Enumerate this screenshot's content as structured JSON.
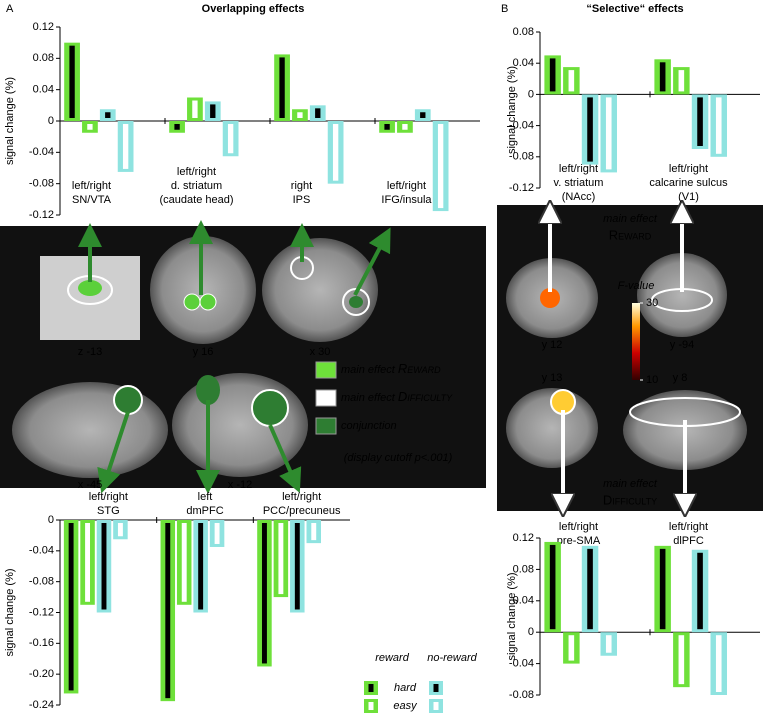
{
  "panels": [
    {
      "label": "A",
      "title": "Overlapping effects"
    },
    {
      "label": "B",
      "title": "“Selective“ effects"
    }
  ],
  "chart_data": [
    {
      "type": "bar",
      "ylabel": "signal change (%)",
      "categories": [
        [
          "left/right",
          "SN/VTA"
        ],
        [
          "left/right",
          "d. striatum",
          "(caudate head)"
        ],
        [
          "right",
          "IPS"
        ],
        [
          "left/right",
          "IFG/insula"
        ]
      ],
      "series": [
        {
          "color": "#6ee03a",
          "fill": "#000000",
          "values": [
            0.1,
            -0.015,
            0.085,
            -0.015
          ]
        },
        {
          "color": "#6ee03a",
          "fill": "#ffffff",
          "values": [
            -0.015,
            0.03,
            0.015,
            -0.015
          ]
        },
        {
          "color": "#8fe3e0",
          "fill": "#000000",
          "values": [
            0.015,
            0.025,
            0.02,
            0.015
          ]
        },
        {
          "color": "#8fe3e0",
          "fill": "#ffffff",
          "values": [
            -0.065,
            -0.045,
            -0.08,
            -0.115
          ]
        }
      ],
      "ylim": [
        -0.12,
        0.12
      ],
      "yticks": [
        0.12,
        0.08,
        0.04,
        0,
        -0.04,
        -0.08,
        -0.12
      ]
    },
    {
      "type": "bar",
      "ylabel": "signal change (%)",
      "categories": [
        [
          "left/right",
          "STG"
        ],
        [
          "left",
          "dmPFC"
        ],
        [
          "left/right",
          "PCC/precuneus"
        ]
      ],
      "series": [
        {
          "color": "#6ee03a",
          "fill": "#000000",
          "values": [
            -0.225,
            -0.235,
            -0.19
          ]
        },
        {
          "color": "#6ee03a",
          "fill": "#ffffff",
          "values": [
            -0.11,
            -0.11,
            -0.1
          ]
        },
        {
          "color": "#8fe3e0",
          "fill": "#000000",
          "values": [
            -0.12,
            -0.12,
            -0.12
          ]
        },
        {
          "color": "#8fe3e0",
          "fill": "#ffffff",
          "values": [
            -0.025,
            -0.035,
            -0.03
          ]
        }
      ],
      "ylim": [
        -0.24,
        0
      ],
      "yticks": [
        0,
        -0.04,
        -0.08,
        -0.12,
        -0.16,
        {
          "value": -0.2,
          "label": "-0.20"
        },
        -0.24
      ],
      "legend": {
        "columns": [
          "reward",
          "no-reward"
        ],
        "rows": [
          "hard",
          "easy"
        ]
      }
    },
    {
      "type": "bar",
      "ylabel": "signal change (%)",
      "categories": [
        [
          "left/right",
          "v. striatum",
          "(NAcc)"
        ],
        [
          "left/right",
          "calcarine sulcus",
          "(V1)"
        ]
      ],
      "series": [
        {
          "color": "#6ee03a",
          "fill": "#000000",
          "values": [
            0.05,
            0.045
          ]
        },
        {
          "color": "#6ee03a",
          "fill": "#ffffff",
          "values": [
            0.035,
            0.035
          ]
        },
        {
          "color": "#8fe3e0",
          "fill": "#000000",
          "values": [
            -0.09,
            -0.07
          ]
        },
        {
          "color": "#8fe3e0",
          "fill": "#ffffff",
          "values": [
            -0.1,
            -0.08
          ]
        }
      ],
      "ylim": [
        -0.12,
        0.08
      ],
      "yticks": [
        0.08,
        0.04,
        0,
        -0.04,
        -0.08,
        -0.12
      ]
    },
    {
      "type": "bar",
      "ylabel": "signal change (%)",
      "categories": [
        [
          "left/right",
          "pre-SMA"
        ],
        [
          "left/right",
          "dlPFC"
        ]
      ],
      "series": [
        {
          "color": "#6ee03a",
          "fill": "#000000",
          "values": [
            0.115,
            0.11
          ]
        },
        {
          "color": "#6ee03a",
          "fill": "#ffffff",
          "values": [
            -0.04,
            -0.07
          ]
        },
        {
          "color": "#8fe3e0",
          "fill": "#000000",
          "values": [
            0.11,
            0.105
          ]
        },
        {
          "color": "#8fe3e0",
          "fill": "#ffffff",
          "values": [
            -0.03,
            -0.08
          ]
        }
      ],
      "ylim": [
        -0.08,
        0.12
      ],
      "yticks": [
        0.12,
        0.08,
        0.04,
        0,
        -0.04,
        -0.08
      ]
    }
  ],
  "images": {
    "slices": [
      "z -13",
      "y 16",
      "x 30",
      "x -45",
      "x -12",
      "y 12",
      "y -94",
      "y 13",
      "y 8"
    ],
    "legend": [
      {
        "color": "#6ee03a",
        "prefix": "main effect",
        "name": "Reward"
      },
      {
        "color": "#ffffff",
        "prefix": "main effect",
        "name": "Difficulty"
      },
      {
        "color": "#2e7d32",
        "prefix": "",
        "name": "conjunction"
      }
    ],
    "cutoff": "(display cutoff p<.001)",
    "b_top": [
      "main effect",
      "Reward"
    ],
    "b_bottom": [
      "main effect",
      "Difficulty"
    ],
    "colorbar": {
      "label": "F-value",
      "ticks": [
        30,
        10
      ]
    }
  }
}
